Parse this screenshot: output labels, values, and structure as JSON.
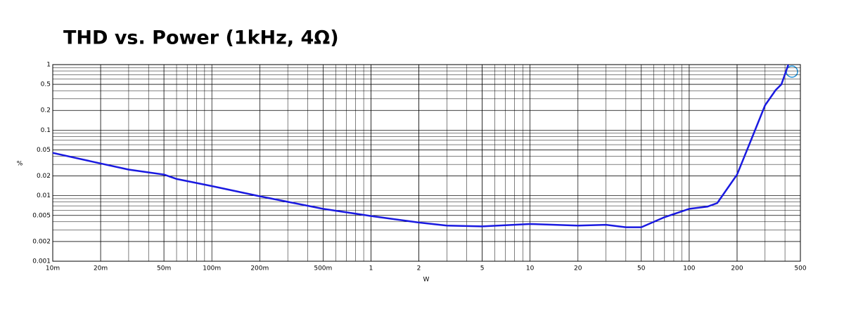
{
  "chart_data": {
    "type": "line",
    "title": "THD vs. Power (1kHz, 4Ω)",
    "x_label": "W",
    "y_label": "%",
    "log_x": true,
    "log_y": true,
    "grid": true,
    "minor_grid": true,
    "xlim": [
      0.01,
      500
    ],
    "ylim": [
      0.001,
      1
    ],
    "xticks": [
      {
        "value": 0.01,
        "label": "10m"
      },
      {
        "value": 0.02,
        "label": "20m"
      },
      {
        "value": 0.05,
        "label": "50m"
      },
      {
        "value": 0.1,
        "label": "100m"
      },
      {
        "value": 0.2,
        "label": "200m"
      },
      {
        "value": 0.5,
        "label": "500m"
      },
      1,
      2,
      5,
      10,
      20,
      50,
      100,
      200,
      500
    ],
    "yticks": [
      0.001,
      0.002,
      0.005,
      0.01,
      0.02,
      0.05,
      0.1,
      0.2,
      0.5,
      1
    ],
    "x": [
      0.01,
      0.02,
      0.03,
      0.05,
      0.06,
      0.1,
      0.2,
      0.5,
      1,
      2,
      3,
      5,
      10,
      20,
      30,
      40,
      50,
      70,
      100,
      130,
      150,
      200,
      250,
      300,
      350,
      380,
      420
    ],
    "series": [
      {
        "name": "THD",
        "color": "#1a1ae0",
        "values": [
          0.045,
          0.031,
          0.025,
          0.021,
          0.018,
          0.014,
          0.0098,
          0.0063,
          0.0049,
          0.0039,
          0.0035,
          0.0034,
          0.0037,
          0.0035,
          0.0036,
          0.0033,
          0.0033,
          0.0047,
          0.0063,
          0.0068,
          0.0077,
          0.021,
          0.08,
          0.24,
          0.41,
          0.5,
          1.0
        ]
      }
    ]
  }
}
